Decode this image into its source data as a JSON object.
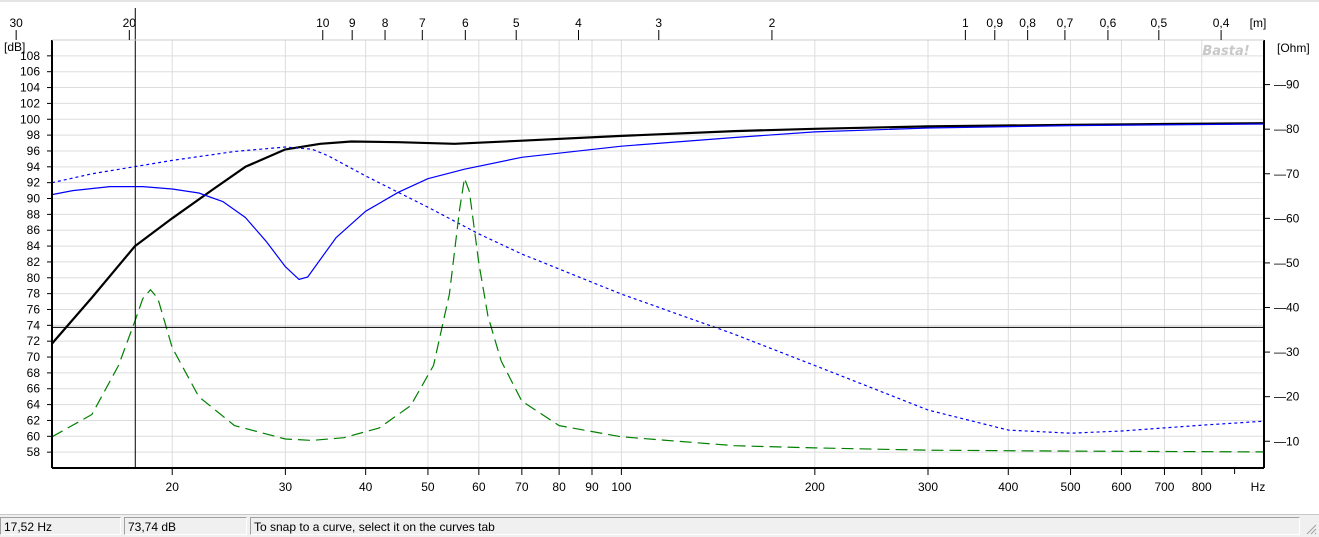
{
  "chart_data": {
    "type": "line",
    "watermark": "Basta!",
    "x_axis": {
      "scale": "log",
      "range": [
        13,
        1000
      ],
      "unit_label": "Hz",
      "ticks": [
        20,
        30,
        40,
        50,
        60,
        70,
        80,
        90,
        100,
        200,
        300,
        400,
        500,
        600,
        700,
        800
      ],
      "tick_labels": [
        "20",
        "30",
        "40",
        "50",
        "60",
        "70",
        "80",
        "90",
        "100",
        "200",
        "300",
        "400",
        "500",
        "600",
        "700",
        "800"
      ]
    },
    "top_axis": {
      "unit_label": "[m]",
      "ticks": [
        30,
        20,
        10,
        9,
        8,
        7,
        6,
        5,
        4,
        3,
        2,
        1,
        0.9,
        0.8,
        0.7,
        0.6,
        0.5,
        0.4
      ],
      "tick_labels": [
        "30",
        "20",
        "10",
        "9",
        "8",
        "7",
        "6",
        "5",
        "4",
        "3",
        "2",
        "1",
        "0,9",
        "0,8",
        "0,7",
        "0,6",
        "0,5",
        "0,4"
      ]
    },
    "y_left": {
      "unit_label": "[dB]",
      "range": [
        56,
        110
      ],
      "tick_step": 2,
      "tick_labels": [
        "58",
        "60",
        "62",
        "64",
        "66",
        "68",
        "70",
        "72",
        "74",
        "76",
        "78",
        "80",
        "82",
        "84",
        "86",
        "88",
        "90",
        "92",
        "94",
        "96",
        "98",
        "100",
        "102",
        "104",
        "106",
        "108"
      ]
    },
    "y_right": {
      "unit_label": "[Ohm]",
      "range": [
        4,
        100
      ],
      "ticks": [
        10,
        20,
        30,
        40,
        50,
        60,
        70,
        80,
        90
      ],
      "tick_labels": [
        "10",
        "20",
        "30",
        "40",
        "50",
        "60",
        "70",
        "80",
        "90"
      ]
    },
    "grid": true,
    "cursor": {
      "x_hz": 17.52,
      "y_db": 73.74
    },
    "series": [
      {
        "axis": "left",
        "color": "#000000",
        "style": "solid",
        "x": [
          13,
          15,
          17.5,
          20,
          23,
          26,
          30,
          34,
          38,
          45,
          55,
          70,
          100,
          150,
          200,
          300,
          500,
          700,
          1000
        ],
        "y": [
          71.7,
          77.5,
          84,
          87.5,
          91,
          94,
          96.2,
          96.9,
          97.2,
          97.1,
          96.9,
          97.3,
          97.9,
          98.5,
          98.8,
          99.1,
          99.3,
          99.4,
          99.5
        ]
      },
      {
        "axis": "left",
        "color": "#0000ff",
        "style": "solid",
        "x": [
          13,
          14,
          16,
          18,
          20,
          22,
          24,
          26,
          28,
          30,
          31.5,
          32.5,
          34,
          36,
          40,
          45,
          50,
          57,
          70,
          100,
          150,
          200,
          300,
          500,
          1000
        ],
        "y": [
          90.5,
          91,
          91.5,
          91.5,
          91.2,
          90.7,
          89.6,
          87.6,
          84.6,
          81.4,
          79.8,
          80.1,
          82.3,
          85.1,
          88.4,
          90.8,
          92.5,
          93.7,
          95.2,
          96.6,
          97.7,
          98.4,
          98.9,
          99.2,
          99.4
        ]
      },
      {
        "axis": "right",
        "color": "#0000ff",
        "style": "dotted",
        "x": [
          13,
          15,
          20,
          25,
          30,
          33,
          35,
          40,
          50,
          60,
          70,
          100,
          150,
          200,
          300,
          400,
          500,
          600,
          700,
          800,
          1000
        ],
        "y": [
          68,
          70,
          73,
          75,
          76,
          75.5,
          74,
          69.5,
          62.5,
          56.5,
          52,
          43,
          34,
          27,
          17,
          12.5,
          11.8,
          12.3,
          13,
          13.6,
          14.5
        ]
      },
      {
        "axis": "right",
        "color": "#008000",
        "style": "dashed",
        "x": [
          13,
          15,
          16.5,
          17.5,
          18,
          18.5,
          19,
          20,
          22,
          25,
          30,
          33,
          37,
          42,
          47,
          51,
          54,
          56,
          57,
          58,
          60,
          62,
          65,
          70,
          80,
          100,
          150,
          200,
          300,
          500,
          1000
        ],
        "y": [
          11,
          16,
          27,
          37,
          42,
          44,
          42,
          31,
          20,
          13.5,
          10.5,
          10.2,
          10.8,
          13,
          18,
          27,
          43,
          62,
          69,
          66,
          50,
          38,
          28,
          19,
          13.5,
          11,
          9,
          8.5,
          8,
          7.8,
          7.6
        ]
      }
    ]
  },
  "status": {
    "frequency": "17,52 Hz",
    "level": "73,74 dB",
    "hint": "To snap to a curve, select it on the curves tab"
  }
}
